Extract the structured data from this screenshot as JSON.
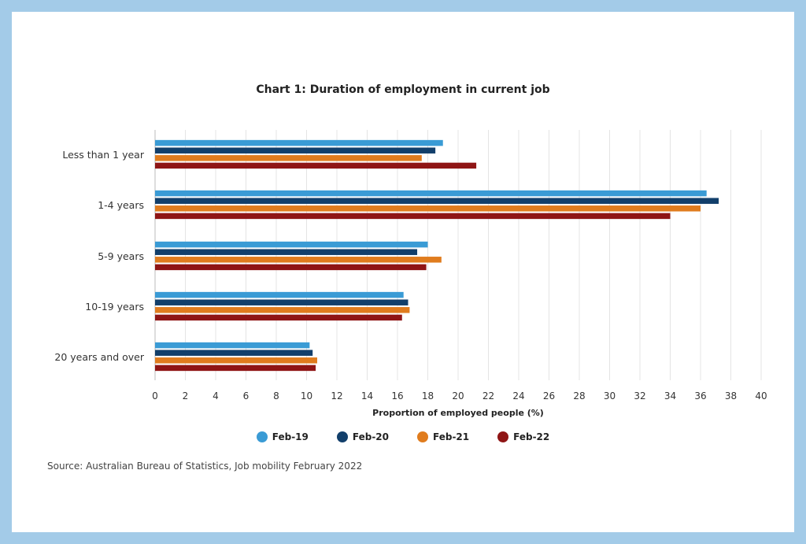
{
  "chart_data": {
    "type": "bar",
    "orientation": "horizontal",
    "title": "Chart 1: Duration of employment in current job",
    "xlabel": "Proportion of employed people (%)",
    "ylabel": "",
    "xlim": [
      0,
      40
    ],
    "xticks": [
      0,
      2,
      4,
      6,
      8,
      10,
      12,
      14,
      16,
      18,
      20,
      22,
      24,
      26,
      28,
      30,
      32,
      34,
      36,
      38,
      40
    ],
    "categories": [
      "Less than 1 year",
      "1-4 years",
      "5-9 years",
      "10-19 years",
      "20 years and over"
    ],
    "series": [
      {
        "name": "Feb-19",
        "color": "#3a9bd5",
        "values": [
          19.0,
          36.4,
          18.0,
          16.4,
          10.2
        ]
      },
      {
        "name": "Feb-20",
        "color": "#123f6b",
        "values": [
          18.5,
          37.2,
          17.3,
          16.7,
          10.4
        ]
      },
      {
        "name": "Feb-21",
        "color": "#e07c1e",
        "values": [
          17.6,
          36.0,
          18.9,
          16.8,
          10.7
        ]
      },
      {
        "name": "Feb-22",
        "color": "#8f1515",
        "values": [
          21.2,
          34.0,
          17.9,
          16.3,
          10.6
        ]
      }
    ],
    "grid": true,
    "legend_position": "bottom"
  },
  "source": "Source: Australian Bureau of Statistics, Job mobility February 2022"
}
